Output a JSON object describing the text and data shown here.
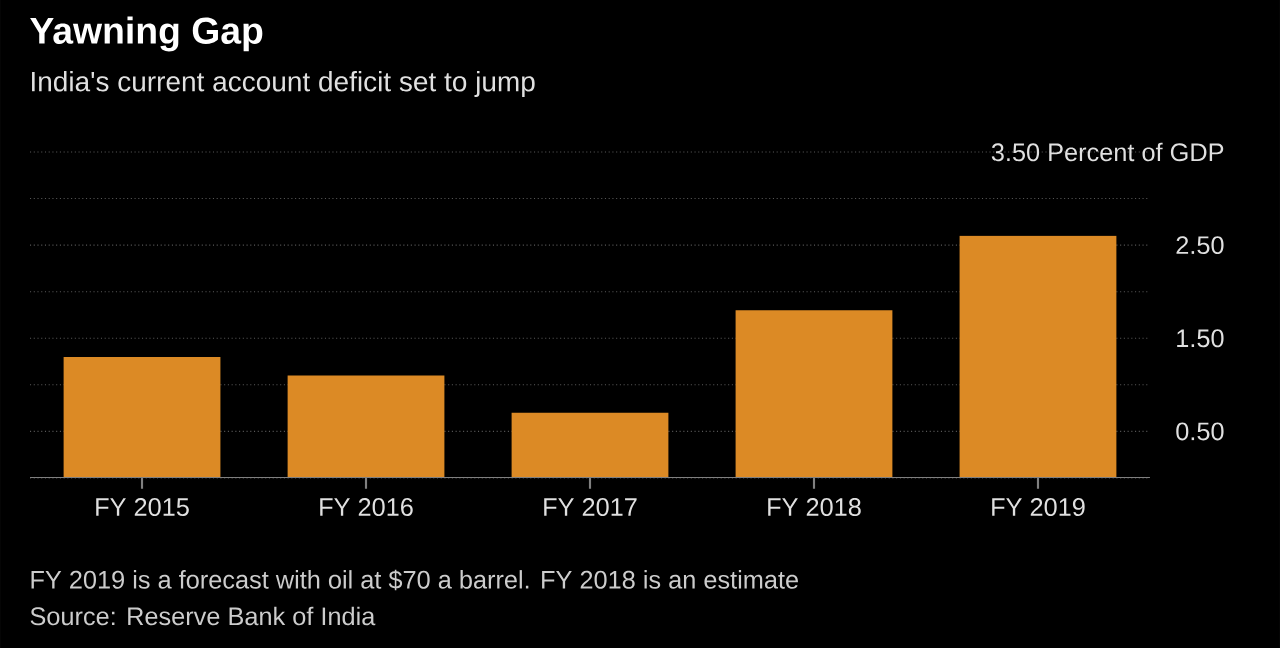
{
  "chart_data": {
    "type": "bar",
    "title": "Yawning Gap",
    "subtitle": "India's current account deficit set to jump",
    "categories": [
      "FY 2015",
      "FY 2016",
      "FY 2017",
      "FY 2018",
      "FY 2019"
    ],
    "values": [
      1.3,
      1.1,
      0.7,
      1.8,
      2.6
    ],
    "color": "#dc8a25",
    "ylim": [
      0,
      3.5
    ],
    "yticks": [
      {
        "value": 0,
        "label": null
      },
      {
        "value": 0.5,
        "label": "0.50"
      },
      {
        "value": 1.0,
        "label": null
      },
      {
        "value": 1.5,
        "label": "1.50"
      },
      {
        "value": 2.0,
        "label": null
      },
      {
        "value": 2.5,
        "label": "2.50"
      },
      {
        "value": 3.0,
        "label": null
      },
      {
        "value": 3.5,
        "label": "3.50 Percent of GDP"
      }
    ],
    "grid": "y",
    "annotations": [
      "FY 2019 is a forecast with oil at $70 a barrel. FY 2018 is an estimate",
      "Source: Reserve Bank of India"
    ]
  }
}
